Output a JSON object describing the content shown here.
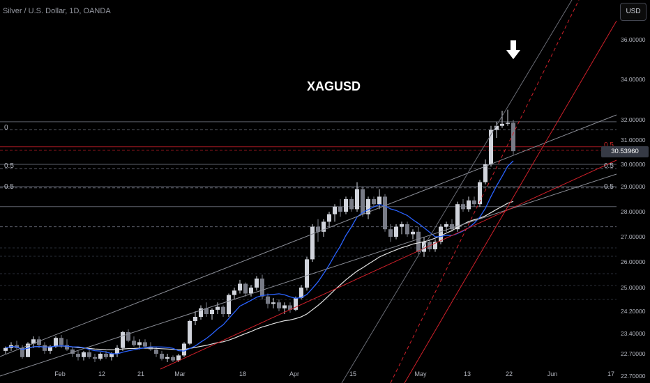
{
  "header": {
    "symbol_title": "Silver / U.S. Dollar, 1D, OANDA",
    "currency_button": "USD",
    "watermark": "XAGUSD"
  },
  "price_tag": "30.53960",
  "colors": {
    "background": "#000000",
    "candle_up": "#d1d4dc",
    "candle_down": "#787b86",
    "ema_blue": "#2962ff",
    "sma_white": "#e0e0e0",
    "trend_red": "#d0202a",
    "grid": "#2a2e39"
  },
  "icons": {
    "arrow": "down-arrow-icon"
  },
  "chart_data": {
    "type": "candlestick",
    "title": "Silver / U.S. Dollar, 1D, OANDA",
    "ylim": [
      22.5,
      37.6
    ],
    "y_ticks": [
      "36.00000",
      "34.00000",
      "32.00000",
      "31.00000",
      "30.00000",
      "29.00000",
      "28.00000",
      "27.00000",
      "26.00000",
      "25.00000",
      "24.20000",
      "23.40000",
      "22.70000",
      "22.70000"
    ],
    "x_ticks": [
      "Feb",
      "12",
      "21",
      "Mar",
      "18",
      "Apr",
      "15",
      "May",
      "13",
      "22",
      "Jun",
      "17"
    ],
    "fib_labels": [
      "0",
      "0.5",
      "0.5",
      "0.5",
      "0.5",
      "0.5"
    ],
    "horizontal_levels": [
      31.9,
      31.5,
      30.72,
      30.58,
      30.0,
      29.8,
      29.0,
      28.95,
      28.2,
      27.4
    ],
    "candles": [
      [
        22.8,
        22.95,
        22.7,
        22.9
      ],
      [
        22.9,
        23.1,
        22.8,
        23.0
      ],
      [
        23.0,
        23.15,
        22.85,
        22.9
      ],
      [
        22.9,
        23.0,
        22.55,
        22.6
      ],
      [
        22.6,
        23.1,
        22.6,
        23.05
      ],
      [
        23.05,
        23.3,
        22.9,
        23.2
      ],
      [
        23.2,
        23.3,
        22.9,
        23.0
      ],
      [
        23.0,
        23.1,
        22.7,
        22.8
      ],
      [
        22.8,
        23.0,
        22.7,
        22.95
      ],
      [
        22.95,
        23.3,
        22.9,
        23.25
      ],
      [
        23.25,
        23.35,
        22.9,
        23.0
      ],
      [
        23.0,
        23.2,
        22.8,
        22.85
      ],
      [
        22.85,
        22.95,
        22.6,
        22.7
      ],
      [
        22.7,
        22.8,
        22.5,
        22.6
      ],
      [
        22.6,
        22.8,
        22.5,
        22.75
      ],
      [
        22.75,
        22.9,
        22.55,
        22.6
      ],
      [
        22.6,
        22.7,
        22.45,
        22.55
      ],
      [
        22.55,
        22.75,
        22.5,
        22.7
      ],
      [
        22.7,
        22.8,
        22.55,
        22.6
      ],
      [
        22.6,
        22.75,
        22.5,
        22.7
      ],
      [
        22.7,
        23.0,
        22.6,
        22.9
      ],
      [
        22.9,
        23.5,
        22.8,
        23.45
      ],
      [
        23.45,
        23.55,
        23.1,
        23.15
      ],
      [
        23.15,
        23.3,
        22.95,
        23.0
      ],
      [
        23.0,
        23.2,
        22.85,
        23.1
      ],
      [
        23.1,
        23.2,
        22.9,
        22.95
      ],
      [
        22.95,
        23.1,
        22.8,
        22.85
      ],
      [
        22.85,
        22.95,
        22.6,
        22.7
      ],
      [
        22.7,
        22.8,
        22.5,
        22.55
      ],
      [
        22.55,
        22.7,
        22.45,
        22.6
      ],
      [
        22.6,
        22.65,
        22.4,
        22.5
      ],
      [
        22.5,
        22.7,
        22.45,
        22.65
      ],
      [
        22.65,
        23.1,
        22.6,
        23.05
      ],
      [
        23.05,
        23.9,
        23.0,
        23.85
      ],
      [
        23.85,
        24.2,
        23.7,
        24.0
      ],
      [
        24.0,
        24.4,
        23.9,
        24.3
      ],
      [
        24.3,
        24.5,
        24.0,
        24.1
      ],
      [
        24.1,
        24.3,
        23.9,
        24.25
      ],
      [
        24.25,
        24.5,
        24.1,
        24.35
      ],
      [
        24.35,
        24.4,
        24.0,
        24.1
      ],
      [
        24.1,
        24.8,
        24.0,
        24.75
      ],
      [
        24.75,
        25.0,
        24.6,
        24.9
      ],
      [
        24.9,
        25.3,
        24.8,
        25.15
      ],
      [
        25.15,
        25.2,
        24.7,
        24.8
      ],
      [
        24.8,
        25.1,
        24.7,
        25.0
      ],
      [
        25.0,
        25.45,
        24.9,
        25.35
      ],
      [
        25.35,
        25.5,
        24.6,
        24.7
      ],
      [
        24.7,
        24.8,
        24.3,
        24.45
      ],
      [
        24.45,
        24.65,
        24.3,
        24.5
      ],
      [
        24.5,
        24.6,
        24.2,
        24.3
      ],
      [
        24.3,
        24.5,
        24.1,
        24.4
      ],
      [
        24.4,
        24.5,
        24.15,
        24.25
      ],
      [
        24.25,
        24.7,
        24.2,
        24.65
      ],
      [
        24.65,
        25.1,
        24.6,
        25.0
      ],
      [
        25.0,
        26.2,
        24.9,
        26.1
      ],
      [
        26.1,
        27.5,
        26.0,
        27.4
      ],
      [
        27.4,
        27.7,
        26.8,
        27.2
      ],
      [
        27.2,
        27.7,
        27.0,
        27.6
      ],
      [
        27.6,
        28.0,
        27.4,
        27.9
      ],
      [
        27.9,
        28.3,
        27.6,
        28.2
      ],
      [
        28.2,
        28.5,
        27.8,
        28.0
      ],
      [
        28.0,
        28.6,
        27.9,
        28.5
      ],
      [
        28.5,
        28.6,
        28.0,
        28.1
      ],
      [
        28.1,
        29.2,
        28.0,
        28.9
      ],
      [
        28.9,
        29.0,
        27.8,
        27.9
      ],
      [
        27.9,
        28.6,
        27.7,
        28.5
      ],
      [
        28.5,
        28.6,
        28.2,
        28.3
      ],
      [
        28.3,
        28.9,
        28.1,
        28.6
      ],
      [
        28.6,
        28.7,
        27.2,
        27.3
      ],
      [
        27.3,
        27.5,
        26.8,
        27.0
      ],
      [
        27.0,
        27.5,
        26.9,
        27.4
      ],
      [
        27.4,
        27.6,
        27.1,
        27.5
      ],
      [
        27.5,
        27.6,
        27.0,
        27.1
      ],
      [
        27.1,
        27.3,
        26.9,
        27.2
      ],
      [
        27.2,
        27.4,
        26.3,
        26.4
      ],
      [
        26.4,
        27.0,
        26.2,
        26.8
      ],
      [
        26.8,
        26.9,
        26.4,
        26.5
      ],
      [
        26.5,
        26.9,
        26.4,
        26.8
      ],
      [
        26.8,
        27.5,
        26.7,
        27.4
      ],
      [
        27.4,
        27.6,
        27.2,
        27.5
      ],
      [
        27.5,
        27.7,
        27.2,
        27.3
      ],
      [
        27.3,
        28.4,
        27.2,
        28.3
      ],
      [
        28.3,
        28.5,
        28.0,
        28.1
      ],
      [
        28.1,
        28.6,
        28.0,
        28.45
      ],
      [
        28.45,
        28.6,
        28.2,
        28.3
      ],
      [
        28.3,
        29.3,
        28.2,
        29.2
      ],
      [
        29.2,
        30.2,
        29.1,
        30.0
      ],
      [
        30.0,
        31.7,
        29.9,
        31.5
      ],
      [
        31.5,
        31.9,
        31.1,
        31.7
      ],
      [
        31.7,
        32.45,
        31.6,
        31.8
      ],
      [
        31.8,
        32.5,
        31.7,
        31.85
      ],
      [
        31.85,
        32.0,
        30.4,
        30.54
      ]
    ]
  }
}
